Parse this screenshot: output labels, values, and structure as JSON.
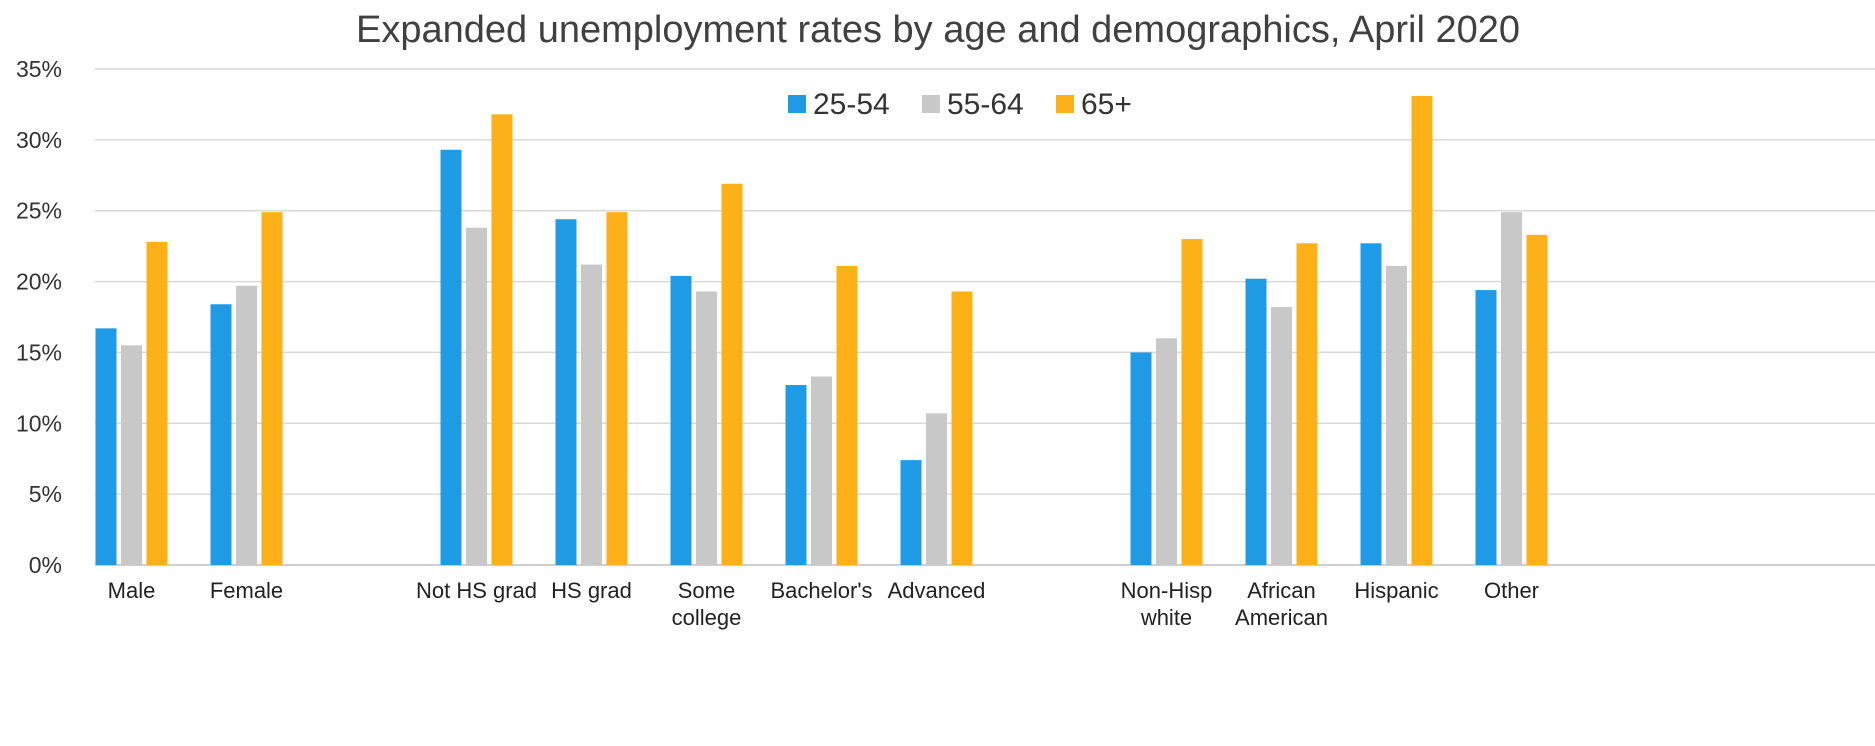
{
  "chart_data": {
    "type": "bar",
    "title": "Expanded unemployment rates by age and demographics, April 2020",
    "xlabel": "",
    "ylabel": "",
    "ylim": [
      0,
      35
    ],
    "yticks": [
      "0%",
      "5%",
      "10%",
      "15%",
      "20%",
      "25%",
      "30%",
      "35%"
    ],
    "grid": true,
    "legend_position": "top-center",
    "categories": [
      [
        "Male"
      ],
      [
        "Female"
      ],
      [
        "Not HS grad"
      ],
      [
        "HS grad"
      ],
      [
        "Some",
        "college"
      ],
      [
        "Bachelor's"
      ],
      [
        "Advanced"
      ],
      [
        "Non-Hisp",
        "white"
      ],
      [
        "African",
        "American"
      ],
      [
        "Hispanic"
      ],
      [
        "Other"
      ]
    ],
    "series": [
      {
        "name": "25-54",
        "color": "#1f9be6",
        "values": [
          16.7,
          18.4,
          29.3,
          24.4,
          20.4,
          12.7,
          7.4,
          15.0,
          20.2,
          22.7,
          19.4
        ]
      },
      {
        "name": "55-64",
        "color": "#c8c8c8",
        "values": [
          15.5,
          19.7,
          23.8,
          21.2,
          19.3,
          13.3,
          10.7,
          16.0,
          18.2,
          21.1,
          24.9
        ]
      },
      {
        "name": "65+",
        "color": "#fbb117",
        "values": [
          22.8,
          24.9,
          31.8,
          24.9,
          26.9,
          21.1,
          19.3,
          23.0,
          22.7,
          33.1,
          23.3
        ]
      }
    ]
  }
}
